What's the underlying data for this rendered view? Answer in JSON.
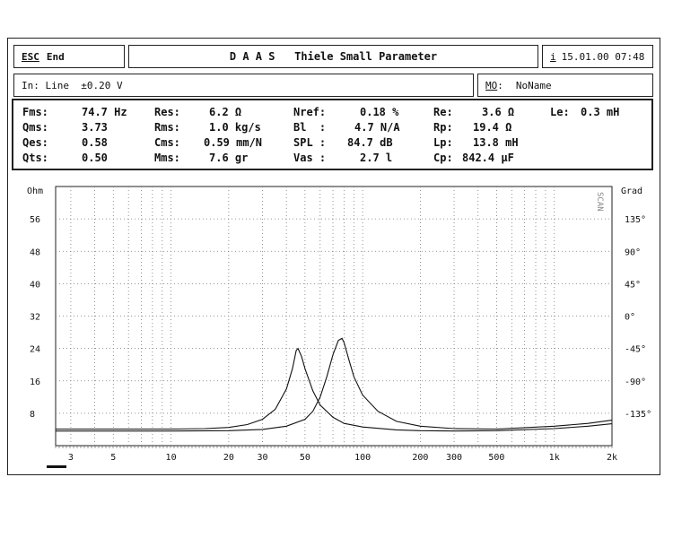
{
  "header": {
    "esc_key": "ESC",
    "end_label": "End",
    "title": "D A A S   Thiele Small Parameter",
    "info_key": "i",
    "datetime": "15.01.00 07:48"
  },
  "inputbar": {
    "input_text": "In: Line  ±0.20 V",
    "mo_key": "MO",
    "mo_sep": ":",
    "mo_value": "NoName"
  },
  "params": {
    "col1": [
      {
        "label": "Fms:",
        "value": "74.7 Hz"
      },
      {
        "label": "Qms:",
        "value": "3.73"
      },
      {
        "label": "Qes:",
        "value": "0.58"
      },
      {
        "label": "Qts:",
        "value": "0.50"
      }
    ],
    "col2": [
      {
        "label": "Res:",
        "value": "6.2 Ω"
      },
      {
        "label": "Rms:",
        "value": "1.0 kg/s"
      },
      {
        "label": "Cms:",
        "value": "0.59 mm/N"
      },
      {
        "label": "Mms:",
        "value": "7.6 gr"
      }
    ],
    "col3": [
      {
        "label": "Nref:",
        "value": "0.18 %"
      },
      {
        "label": "Bl  :",
        "value": "4.7 N/A"
      },
      {
        "label": "SPL :",
        "value": "84.7 dB"
      },
      {
        "label": "Vas :",
        "value": "2.7 l"
      }
    ],
    "col4": [
      {
        "label": "Re:",
        "value": "3.6 Ω"
      },
      {
        "label": "Rp:",
        "value": "19.4 Ω"
      },
      {
        "label": "Lp:",
        "value": "13.8 mH"
      },
      {
        "label": "Cp:",
        "value": "842.4 µF"
      }
    ],
    "col5": [
      {
        "label": "Le:",
        "value": "0.3 mH"
      }
    ]
  },
  "chart_data": {
    "type": "line",
    "y_left_unit": "Ohm",
    "y_right_unit": "Grad",
    "side_label": "SCAN",
    "x_scale": "log",
    "xlim": [
      2.5,
      2000
    ],
    "ylim_left": [
      0,
      64
    ],
    "ylim_right": [
      -180,
      180
    ],
    "x_ticks": [
      3,
      5,
      10,
      20,
      30,
      50,
      100,
      200,
      300,
      500,
      1000,
      2000
    ],
    "x_tick_labels": [
      "3",
      "5",
      "10",
      "20",
      "30",
      "50",
      "100",
      "200",
      "300",
      "500",
      "1k",
      "2k"
    ],
    "y_left_ticks": [
      8,
      16,
      24,
      32,
      40,
      48,
      56
    ],
    "y_right_ticks": [
      -135,
      -90,
      -45,
      0,
      45,
      90,
      135
    ],
    "y_right_tick_labels": [
      "-135°",
      "-90°",
      "-45°",
      "0°",
      "45°",
      "90°",
      "135°"
    ],
    "grid": true,
    "series": [
      {
        "values": [
          [
            2.5,
            4.1
          ],
          [
            5,
            4.1
          ],
          [
            10,
            4.1
          ],
          [
            15,
            4.2
          ],
          [
            20,
            4.5
          ],
          [
            25,
            5.2
          ],
          [
            30,
            6.5
          ],
          [
            35,
            9.0
          ],
          [
            40,
            14.0
          ],
          [
            43,
            19.0
          ],
          [
            45,
            23.5
          ],
          [
            46,
            24.0
          ],
          [
            48,
            22.0
          ],
          [
            50,
            19.0
          ],
          [
            55,
            13.5
          ],
          [
            60,
            10.0
          ],
          [
            70,
            7.0
          ],
          [
            80,
            5.5
          ],
          [
            100,
            4.6
          ],
          [
            150,
            3.9
          ],
          [
            200,
            3.7
          ],
          [
            300,
            3.6
          ],
          [
            500,
            3.7
          ],
          [
            1000,
            4.2
          ],
          [
            1500,
            4.8
          ],
          [
            2000,
            5.4
          ]
        ]
      },
      {
        "values": [
          [
            2.5,
            3.6
          ],
          [
            5,
            3.6
          ],
          [
            10,
            3.6
          ],
          [
            20,
            3.7
          ],
          [
            30,
            4.0
          ],
          [
            40,
            4.8
          ],
          [
            50,
            6.5
          ],
          [
            55,
            8.5
          ],
          [
            60,
            12.0
          ],
          [
            65,
            17.0
          ],
          [
            70,
            22.5
          ],
          [
            74.7,
            26.0
          ],
          [
            78,
            26.5
          ],
          [
            80,
            25.5
          ],
          [
            85,
            21.0
          ],
          [
            90,
            17.0
          ],
          [
            100,
            12.5
          ],
          [
            120,
            8.5
          ],
          [
            150,
            6.0
          ],
          [
            200,
            4.8
          ],
          [
            300,
            4.2
          ],
          [
            500,
            4.1
          ],
          [
            1000,
            4.8
          ],
          [
            1500,
            5.5
          ],
          [
            2000,
            6.3
          ]
        ]
      }
    ]
  }
}
